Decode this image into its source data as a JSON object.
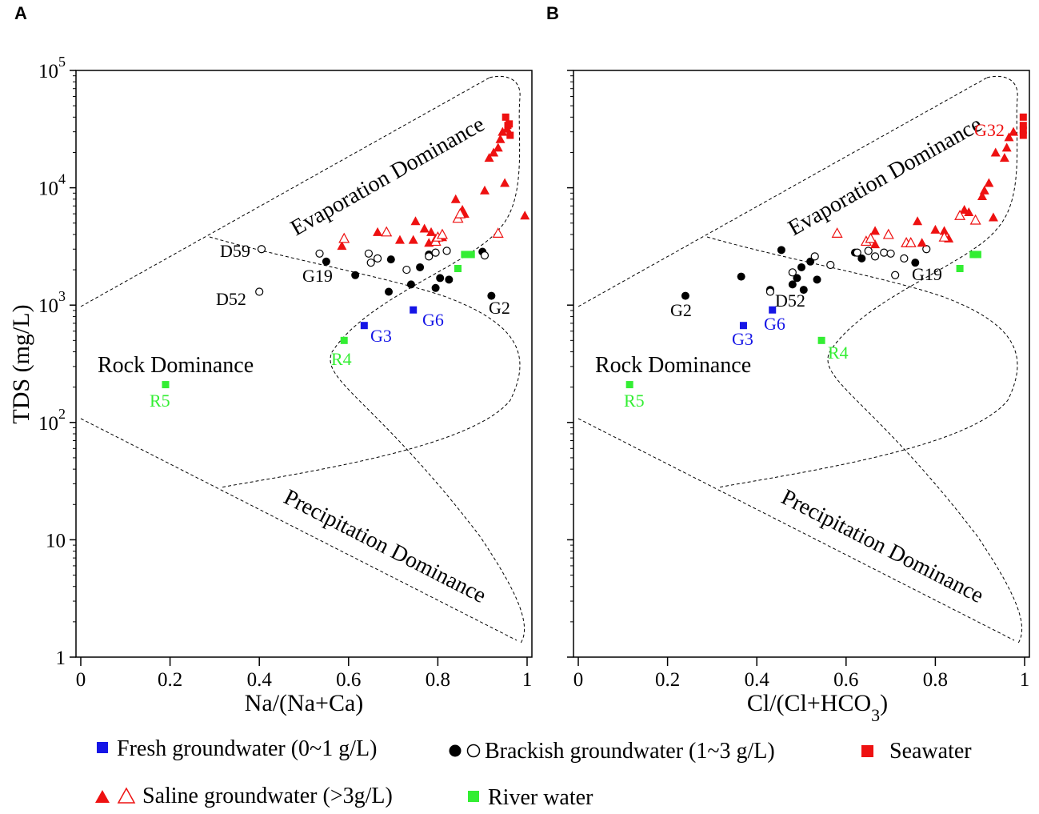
{
  "colors": {
    "fresh": "#1515e6",
    "brackish": "#000000",
    "saline": "#ee1111",
    "seawater": "#ee1111",
    "river": "#33ee33"
  },
  "shared_axis": {
    "y_label": "TDS (mg/L)",
    "y_ticks": [
      "1",
      "10",
      "10^2",
      "10^3",
      "10^4",
      "10^5"
    ],
    "x_ticks": [
      "0",
      "0.2",
      "0.4",
      "0.6",
      "0.8",
      "1"
    ]
  },
  "region_labels": {
    "evaporation": "Evaporation Dominance",
    "rock": "Rock Dominance",
    "precipitation": "Precipitation Dominance"
  },
  "legend": {
    "fresh": "Fresh groundwater (0~1 g/L)",
    "brackish": "Brackish groundwater (1~3 g/L)",
    "seawater": "Seawater",
    "saline": "Saline groundwater (>3g/L)",
    "river": "River water"
  },
  "chart_data": [
    {
      "panel": "A",
      "type": "scatter",
      "xlabel": "Na/(Na+Ca)",
      "ylabel": "TDS (mg/L)",
      "xlim": [
        0,
        1
      ],
      "ylim": [
        1,
        100000
      ],
      "y_scale": "log",
      "series": [
        {
          "name": "Fresh groundwater",
          "marker": "square",
          "fill": "fresh",
          "x": [
            0.635,
            0.745
          ],
          "y": [
            670,
            910
          ]
        },
        {
          "name": "Brackish groundwater (filled)",
          "marker": "circle",
          "fill": "brackish",
          "x": [
            0.55,
            0.615,
            0.69,
            0.695,
            0.74,
            0.76,
            0.78,
            0.795,
            0.805,
            0.825,
            0.9,
            0.92
          ],
          "y": [
            2350,
            1800,
            1300,
            2450,
            1500,
            2100,
            2700,
            1400,
            1700,
            1650,
            2850,
            1200
          ]
        },
        {
          "name": "Brackish groundwater (open)",
          "marker": "circle-open",
          "fill": "brackish",
          "x": [
            0.405,
            0.4,
            0.535,
            0.645,
            0.65,
            0.665,
            0.73,
            0.78,
            0.795,
            0.82,
            0.905
          ],
          "y": [
            3000,
            1300,
            2750,
            2750,
            2300,
            2500,
            2000,
            2600,
            2800,
            2900,
            2650
          ]
        },
        {
          "name": "Saline groundwater (filled)",
          "marker": "triangle",
          "fill": "saline",
          "x": [
            0.585,
            0.665,
            0.715,
            0.745,
            0.75,
            0.77,
            0.78,
            0.785,
            0.795,
            0.81,
            0.84,
            0.855,
            0.86,
            0.905,
            0.915,
            0.925,
            0.935,
            0.94,
            0.945,
            0.95,
            0.955,
            0.995
          ],
          "y": [
            3200,
            4200,
            3600,
            3600,
            5200,
            4500,
            3400,
            4200,
            3700,
            3800,
            8000,
            6500,
            6000,
            9500,
            18000,
            20000,
            22000,
            26000,
            30000,
            11000,
            32000,
            5800
          ]
        },
        {
          "name": "Saline groundwater (open)",
          "marker": "triangle-open",
          "fill": "saline",
          "x": [
            0.59,
            0.685,
            0.795,
            0.8,
            0.81,
            0.845,
            0.85,
            0.935
          ],
          "y": [
            3700,
            4200,
            3500,
            3800,
            4000,
            5500,
            6000,
            4100
          ]
        },
        {
          "name": "Seawater",
          "marker": "square",
          "fill": "seawater",
          "x": [
            0.952,
            0.957,
            0.962,
            0.96
          ],
          "y": [
            40000,
            34000,
            28000,
            35000
          ]
        },
        {
          "name": "River water",
          "marker": "square",
          "fill": "river",
          "x": [
            0.19,
            0.59,
            0.845,
            0.86,
            0.875
          ],
          "y": [
            210,
            500,
            2050,
            2700,
            2700
          ]
        }
      ],
      "annotations": [
        {
          "text": "D59",
          "color": "brackish"
        },
        {
          "text": "D52",
          "color": "brackish"
        },
        {
          "text": "G19",
          "color": "brackish"
        },
        {
          "text": "G2",
          "color": "brackish"
        },
        {
          "text": "G3",
          "color": "fresh"
        },
        {
          "text": "G6",
          "color": "fresh"
        },
        {
          "text": "R4",
          "color": "river"
        },
        {
          "text": "R5",
          "color": "river"
        }
      ]
    },
    {
      "panel": "B",
      "type": "scatter",
      "xlabel": "Cl/(Cl+HCO3)",
      "ylabel": "TDS (mg/L)",
      "xlim": [
        0,
        1
      ],
      "ylim": [
        1,
        100000
      ],
      "y_scale": "log",
      "series": [
        {
          "name": "Fresh groundwater",
          "marker": "square",
          "fill": "fresh",
          "x": [
            0.37,
            0.435
          ],
          "y": [
            670,
            910
          ]
        },
        {
          "name": "Brackish groundwater (filled)",
          "marker": "circle",
          "fill": "brackish",
          "x": [
            0.24,
            0.365,
            0.43,
            0.455,
            0.48,
            0.49,
            0.5,
            0.505,
            0.52,
            0.535,
            0.62,
            0.635,
            0.755
          ],
          "y": [
            1200,
            1750,
            1350,
            2950,
            1500,
            1700,
            2100,
            1350,
            2350,
            1650,
            2800,
            2500,
            2300
          ]
        },
        {
          "name": "Brackish groundwater (open)",
          "marker": "circle-open",
          "fill": "brackish",
          "x": [
            0.43,
            0.48,
            0.53,
            0.565,
            0.625,
            0.65,
            0.665,
            0.685,
            0.7,
            0.71,
            0.73,
            0.78
          ],
          "y": [
            1300,
            1900,
            2600,
            2200,
            2800,
            2900,
            2600,
            2800,
            2750,
            1800,
            2500,
            3000
          ]
        },
        {
          "name": "Saline groundwater (filled)",
          "marker": "triangle",
          "fill": "saline",
          "x": [
            0.665,
            0.665,
            0.76,
            0.77,
            0.8,
            0.82,
            0.83,
            0.865,
            0.875,
            0.905,
            0.91,
            0.92,
            0.93,
            0.935,
            0.955,
            0.96,
            0.965,
            0.975
          ],
          "y": [
            3300,
            4300,
            5200,
            3400,
            4400,
            4300,
            3700,
            6500,
            6200,
            8500,
            9500,
            11000,
            5600,
            20000,
            18000,
            22000,
            27000,
            30000
          ]
        },
        {
          "name": "Saline groundwater (open)",
          "marker": "triangle-open",
          "fill": "saline",
          "x": [
            0.58,
            0.645,
            0.655,
            0.695,
            0.735,
            0.745,
            0.82,
            0.855,
            0.89
          ],
          "y": [
            4100,
            3500,
            3700,
            4000,
            3400,
            3400,
            3800,
            5800,
            5300
          ]
        },
        {
          "name": "Seawater",
          "marker": "square",
          "fill": "seawater",
          "x": [
            0.997,
            0.997,
            0.997,
            0.997
          ],
          "y": [
            40000,
            34000,
            31000,
            28000
          ]
        },
        {
          "name": "River water",
          "marker": "square",
          "fill": "river",
          "x": [
            0.115,
            0.545,
            0.855,
            0.885,
            0.895
          ],
          "y": [
            210,
            500,
            2050,
            2700,
            2700
          ]
        }
      ],
      "annotations": [
        {
          "text": "G32",
          "color": "seawater"
        },
        {
          "text": "D52",
          "color": "brackish"
        },
        {
          "text": "G19",
          "color": "brackish"
        },
        {
          "text": "G2",
          "color": "brackish"
        },
        {
          "text": "G3",
          "color": "fresh"
        },
        {
          "text": "G6",
          "color": "fresh"
        },
        {
          "text": "R4",
          "color": "river"
        },
        {
          "text": "R5",
          "color": "river"
        }
      ]
    }
  ]
}
